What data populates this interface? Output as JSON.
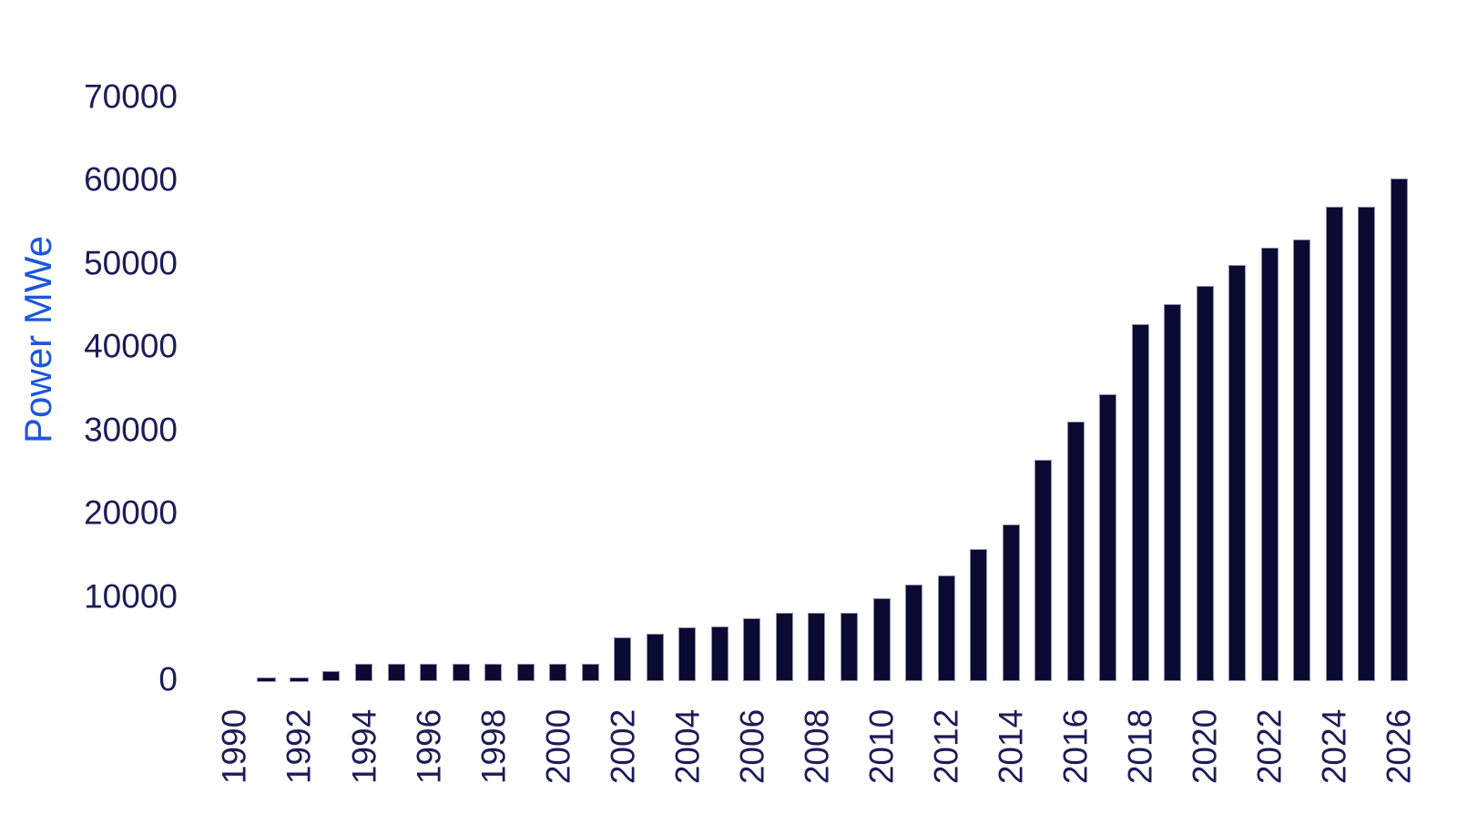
{
  "chart_data": {
    "type": "bar",
    "title": "",
    "xlabel": "",
    "ylabel": "Power MWe",
    "x": [
      1990,
      1991,
      1992,
      1993,
      1994,
      1995,
      1996,
      1997,
      1998,
      1999,
      2000,
      2001,
      2002,
      2003,
      2004,
      2005,
      2006,
      2007,
      2008,
      2009,
      2010,
      2011,
      2012,
      2013,
      2014,
      2015,
      2016,
      2017,
      2018,
      2019,
      2020,
      2021,
      2022,
      2023,
      2024,
      2025,
      2026
    ],
    "values": [
      0,
      300,
      300,
      1200,
      2100,
      2100,
      2100,
      2100,
      2100,
      2100,
      2100,
      2100,
      5200,
      5700,
      6500,
      6600,
      7500,
      8250,
      8250,
      8250,
      9900,
      11600,
      12700,
      15900,
      18850,
      26600,
      31200,
      34400,
      42800,
      45300,
      47400,
      49900,
      52000,
      53000,
      56900,
      56900,
      60300
    ],
    "series_name": "Power MWe",
    "ylim": [
      0,
      70000
    ],
    "ytick_labels": [
      "0",
      "10000",
      "20000",
      "30000",
      "40000",
      "50000",
      "60000",
      "70000"
    ],
    "xtick_labels": [
      "1990",
      "1992",
      "1994",
      "1996",
      "1998",
      "2000",
      "2002",
      "2004",
      "2006",
      "2008",
      "2010",
      "2012",
      "2014",
      "2016",
      "2018",
      "2020",
      "2022",
      "2024",
      "2026"
    ],
    "xtick_rotation_deg": -90,
    "grid": false,
    "legend": "none",
    "colors": {
      "bar_fill": "#0a0a32",
      "bar_edge": "#9090ae",
      "tick_labels": "#1c1c57",
      "axis_title": "#1d57d9",
      "background": "#ffffff"
    }
  }
}
